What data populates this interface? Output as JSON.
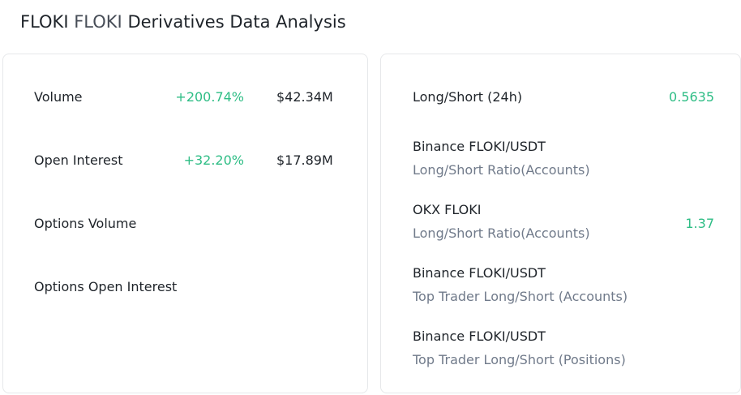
{
  "header": {
    "symbol": "FLOKI",
    "name": "FLOKI",
    "title": "Derivatives Data Analysis"
  },
  "left_panel": {
    "rows": [
      {
        "label": "Volume",
        "change": "+200.74%",
        "value": "$42.34M"
      },
      {
        "label": "Open Interest",
        "change": "+32.20%",
        "value": "$17.89M"
      },
      {
        "label": "Options Volume"
      },
      {
        "label": "Options Open Interest"
      }
    ]
  },
  "right_panel": {
    "rows": [
      {
        "label": "Long/Short (24h)",
        "value": "0.5635"
      },
      {
        "label": "Binance FLOKI/USDT",
        "sublabel": "Long/Short Ratio(Accounts)"
      },
      {
        "label": "OKX FLOKI",
        "sublabel": "Long/Short Ratio(Accounts)",
        "value": "1.37"
      },
      {
        "label": "Binance FLOKI/USDT",
        "sublabel": "Top Trader Long/Short (Accounts)"
      },
      {
        "label": "Binance FLOKI/USDT",
        "sublabel": "Top Trader Long/Short (Positions)"
      }
    ]
  }
}
